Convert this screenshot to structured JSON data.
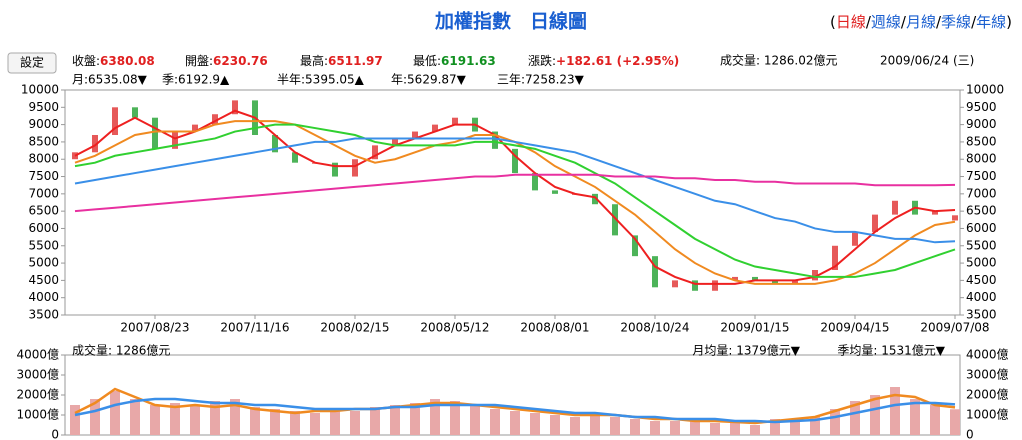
{
  "header": {
    "title": "加權指數　日線圖",
    "open": "(",
    "sep": "/",
    "close": ")",
    "periods": [
      "日線",
      "週線",
      "月線",
      "季線",
      "年線"
    ],
    "settings": "設定",
    "quote": [
      {
        "label": "收盤:",
        "value": "6380.08"
      },
      {
        "label": "開盤:",
        "value": "6230.76"
      },
      {
        "label": "最高:",
        "value": "6511.97"
      },
      {
        "label": "最低:",
        "value": "6191.63"
      },
      {
        "label": "漲跌:",
        "value": "+182.61 (+2.95%)"
      }
    ],
    "volume": "成交量: 1286.02億元",
    "date": "2009/06/24 (三)"
  },
  "chart_data": [
    {
      "type": "candlestick",
      "categories": [
        null,
        null,
        null,
        null,
        "2007/08/23",
        null,
        null,
        null,
        null,
        "2007/11/16",
        null,
        null,
        null,
        null,
        "2008/02/15",
        null,
        null,
        null,
        null,
        "2008/05/12",
        null,
        null,
        null,
        null,
        "2008/08/01",
        null,
        null,
        null,
        null,
        "2008/10/24",
        null,
        null,
        null,
        null,
        "2009/01/15",
        null,
        null,
        null,
        null,
        "2009/04/15",
        null,
        null,
        null,
        null,
        "2009/07/08"
      ],
      "open": [
        8000,
        8200,
        8700,
        9500,
        9200,
        8300,
        8800,
        9000,
        9300,
        9700,
        8700,
        8200,
        7900,
        7900,
        7500,
        8000,
        8400,
        8600,
        8800,
        9000,
        9200,
        8800,
        8300,
        7600,
        7100,
        7000,
        7000,
        6700,
        5800,
        5200,
        4300,
        4500,
        4200,
        4500,
        4600,
        4500,
        4400,
        4500,
        4800,
        5500,
        5900,
        6400,
        6800,
        6400,
        6230.76
      ],
      "close": [
        8200,
        8700,
        9500,
        9200,
        8300,
        8800,
        9000,
        9300,
        9700,
        8700,
        8200,
        7900,
        7900,
        7500,
        8000,
        8400,
        8600,
        8800,
        9000,
        9200,
        8800,
        8300,
        7600,
        7100,
        7000,
        7000,
        6700,
        5800,
        5200,
        4300,
        4500,
        4200,
        4500,
        4600,
        4500,
        4400,
        4500,
        4800,
        5500,
        5900,
        6400,
        6800,
        6400,
        6500,
        6380.08
      ],
      "up_color": "#e03030",
      "down_color": "#20a030",
      "series": [
        {
          "name": "月:6535.08▼",
          "color": "#ee2020",
          "values": [
            8100,
            8400,
            8900,
            9200,
            8900,
            8600,
            8800,
            9100,
            9400,
            9200,
            8700,
            8200,
            7900,
            7800,
            7800,
            8100,
            8400,
            8600,
            8800,
            9000,
            9000,
            8700,
            8100,
            7600,
            7200,
            7000,
            6900,
            6300,
            5700,
            4900,
            4600,
            4400,
            4400,
            4400,
            4500,
            4500,
            4500,
            4600,
            4900,
            5400,
            5900,
            6300,
            6600,
            6500,
            6535.08
          ]
        },
        {
          "name": "季:6192.9▲",
          "color": "#f08a20",
          "values": [
            7900,
            8100,
            8400,
            8700,
            8800,
            8800,
            8800,
            9000,
            9100,
            9100,
            9100,
            9000,
            8700,
            8400,
            8100,
            7900,
            8000,
            8200,
            8400,
            8500,
            8700,
            8700,
            8500,
            8200,
            7800,
            7500,
            7200,
            6800,
            6400,
            5900,
            5400,
            5000,
            4700,
            4500,
            4400,
            4400,
            4400,
            4400,
            4500,
            4700,
            5000,
            5400,
            5800,
            6100,
            6192.9
          ]
        },
        {
          "name": "半年:5395.05▲",
          "color": "#30d030",
          "values": [
            7800,
            7900,
            8100,
            8200,
            8300,
            8400,
            8500,
            8600,
            8800,
            8900,
            9000,
            9000,
            8900,
            8800,
            8700,
            8500,
            8400,
            8400,
            8400,
            8400,
            8500,
            8500,
            8400,
            8300,
            8100,
            7900,
            7600,
            7300,
            6900,
            6500,
            6100,
            5700,
            5400,
            5100,
            4900,
            4800,
            4700,
            4600,
            4600,
            4600,
            4700,
            4800,
            5000,
            5200,
            5395.05
          ]
        },
        {
          "name": "年:5629.87▼",
          "color": "#3a8fe8",
          "values": [
            7300,
            7400,
            7500,
            7600,
            7700,
            7800,
            7900,
            8000,
            8100,
            8200,
            8300,
            8400,
            8500,
            8500,
            8600,
            8600,
            8600,
            8600,
            8600,
            8600,
            8600,
            8600,
            8500,
            8400,
            8300,
            8200,
            8000,
            7800,
            7600,
            7400,
            7200,
            7000,
            6800,
            6700,
            6500,
            6300,
            6200,
            6000,
            5900,
            5900,
            5800,
            5700,
            5700,
            5600,
            5629.87
          ]
        },
        {
          "name": "三年:7258.23▼",
          "color": "#e830a0",
          "values": [
            6500,
            6550,
            6600,
            6650,
            6700,
            6750,
            6800,
            6850,
            6900,
            6950,
            7000,
            7050,
            7100,
            7150,
            7200,
            7250,
            7300,
            7350,
            7400,
            7450,
            7500,
            7500,
            7550,
            7550,
            7550,
            7550,
            7550,
            7500,
            7500,
            7500,
            7450,
            7450,
            7400,
            7400,
            7350,
            7350,
            7300,
            7300,
            7300,
            7300,
            7250,
            7250,
            7250,
            7250,
            7258.23
          ]
        }
      ],
      "ylim": [
        3500,
        10000
      ],
      "yticks": [
        3500,
        4000,
        4500,
        5000,
        5500,
        6000,
        6500,
        7000,
        7500,
        8000,
        8500,
        9000,
        9500,
        10000
      ]
    },
    {
      "type": "bar",
      "title": "成交量: 1286億元",
      "color": "#e8a8a8",
      "values": [
        1500,
        1800,
        2200,
        1800,
        1500,
        1600,
        1500,
        1700,
        1800,
        1400,
        1300,
        1200,
        1100,
        1300,
        1200,
        1400,
        1500,
        1600,
        1800,
        1700,
        1500,
        1300,
        1200,
        1100,
        1000,
        900,
        1000,
        900,
        800,
        700,
        700,
        800,
        600,
        600,
        500,
        800,
        700,
        900,
        1300,
        1700,
        2000,
        2400,
        1800,
        1500,
        1286
      ],
      "series": [
        {
          "name": "月均量: 1379億元▼",
          "color": "#f08a20",
          "values": [
            1100,
            1600,
            2300,
            1900,
            1500,
            1400,
            1500,
            1400,
            1500,
            1300,
            1200,
            1100,
            1200,
            1200,
            1300,
            1300,
            1400,
            1500,
            1600,
            1600,
            1500,
            1400,
            1300,
            1200,
            1100,
            1000,
            1000,
            1000,
            900,
            800,
            800,
            700,
            700,
            650,
            600,
            700,
            800,
            900,
            1200,
            1500,
            1800,
            2000,
            1900,
            1500,
            1379
          ]
        },
        {
          "name": "季均量: 1531億元▼",
          "color": "#3a8fe8",
          "values": [
            1000,
            1200,
            1500,
            1700,
            1800,
            1800,
            1700,
            1600,
            1600,
            1500,
            1500,
            1400,
            1300,
            1300,
            1300,
            1300,
            1400,
            1400,
            1500,
            1500,
            1500,
            1500,
            1400,
            1300,
            1200,
            1100,
            1100,
            1000,
            900,
            900,
            800,
            800,
            800,
            700,
            700,
            650,
            700,
            750,
            900,
            1100,
            1300,
            1500,
            1600,
            1600,
            1531
          ]
        }
      ],
      "ylim": [
        0,
        4000
      ],
      "yticks": [
        0,
        {
          "value": 1000,
          "label": "1000億"
        },
        {
          "value": 2000,
          "label": "2000億"
        },
        {
          "value": 3000,
          "label": "3000億"
        },
        {
          "value": 4000,
          "label": "4000億"
        }
      ]
    }
  ]
}
